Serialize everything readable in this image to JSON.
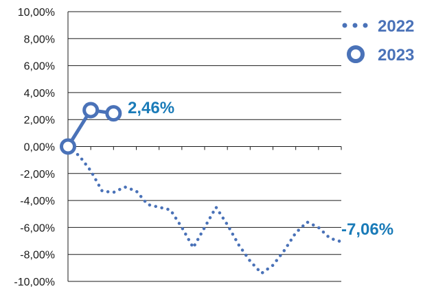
{
  "chart_data": {
    "type": "line",
    "title": "",
    "xlabel": "",
    "ylabel": "",
    "ylim": [
      -10,
      10
    ],
    "y_ticks": [
      "10,00%",
      "8,00%",
      "6,00%",
      "4,00%",
      "2,00%",
      "0,00%",
      "-2,00%",
      "-4,00%",
      "-6,00%",
      "-8,00%",
      "-10,00%"
    ],
    "x_count": 12,
    "grid": "horizontal",
    "legend_position": "top-right",
    "series": [
      {
        "name": "2022",
        "style": "dotted",
        "color": "#4a72b8",
        "x": [
          0,
          0.5,
          1,
          1.5,
          2,
          2.5,
          3,
          3.5,
          4,
          4.5,
          5,
          5.5,
          6,
          6.5,
          7,
          7.5,
          8,
          8.5,
          9,
          9.5,
          10,
          10.5,
          11,
          11.5,
          12
        ],
        "values": [
          0,
          -0.7,
          -1.8,
          -3.3,
          -3.4,
          -3.0,
          -3.3,
          -4.3,
          -4.5,
          -4.7,
          -6.0,
          -7.5,
          -6.0,
          -4.5,
          -5.8,
          -7.3,
          -8.5,
          -9.4,
          -8.8,
          -7.7,
          -6.4,
          -5.6,
          -6.0,
          -6.8,
          -7.06
        ]
      },
      {
        "name": "2023",
        "style": "solid-markers",
        "color": "#4a72b8",
        "x": [
          0,
          1,
          2
        ],
        "values": [
          0,
          2.7,
          2.46
        ]
      }
    ],
    "annotations": [
      {
        "series": "2023",
        "label": "2,46%"
      },
      {
        "series": "2022",
        "label": "-7,06%"
      }
    ],
    "annotation_color": "#1a7bb8"
  }
}
